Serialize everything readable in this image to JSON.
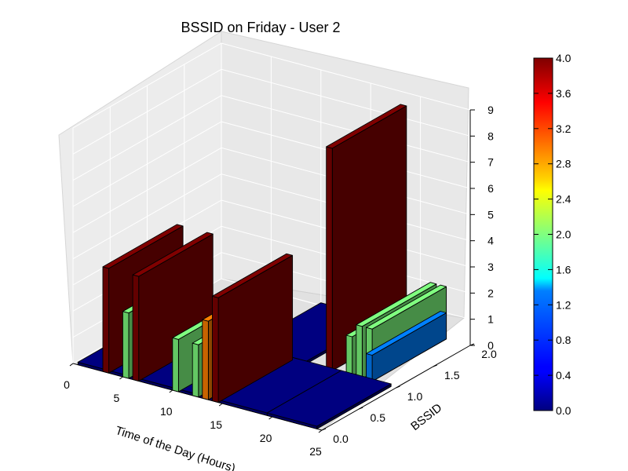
{
  "chart_data": {
    "type": "bar3d",
    "title": "BSSID on Friday - User 2",
    "xlabel": "Time of the Day (Hours)",
    "ylabel": "BSSID",
    "zlabel": "",
    "xlim": [
      0,
      25
    ],
    "ylim": [
      0,
      2
    ],
    "zlim": [
      0,
      9
    ],
    "x_ticks": [
      "0",
      "5",
      "10",
      "15",
      "20",
      "25"
    ],
    "y_ticks": [
      "0.0",
      "0.5",
      "1.0",
      "1.5",
      "2.0"
    ],
    "z_ticks": [
      "0",
      "1",
      "2",
      "3",
      "4",
      "5",
      "6",
      "7",
      "8",
      "9"
    ],
    "colorbar": {
      "min": 0.0,
      "max": 4.0,
      "colormap": "jet",
      "ticks": [
        "0.0",
        "0.4",
        "0.8",
        "1.2",
        "1.6",
        "2.0",
        "2.4",
        "2.8",
        "3.2",
        "3.6",
        "4.0"
      ]
    },
    "bars": [
      {
        "x": 0.5,
        "y": 0.0,
        "z": 0.1,
        "c": 0.0,
        "dx": 19,
        "dy": 1
      },
      {
        "x": 19.5,
        "y": 0.0,
        "z": 0.1,
        "c": 0.0,
        "dx": 5,
        "dy": 1
      },
      {
        "x": 10.0,
        "y": 1.0,
        "z": 0.1,
        "c": 0.0,
        "dx": 6,
        "dy": 1
      },
      {
        "x": 3.0,
        "y": 0.0,
        "z": 4.0,
        "c": 4.0,
        "dx": 0.6,
        "dy": 1
      },
      {
        "x": 5.0,
        "y": 0.0,
        "z": 2.5,
        "c": 2.0,
        "dx": 0.6,
        "dy": 1
      },
      {
        "x": 6.0,
        "y": 0.0,
        "z": 4.0,
        "c": 4.0,
        "dx": 0.6,
        "dy": 1
      },
      {
        "x": 10.0,
        "y": 0.0,
        "z": 2.0,
        "c": 2.0,
        "dx": 0.6,
        "dy": 1
      },
      {
        "x": 12.0,
        "y": 0.0,
        "z": 2.0,
        "c": 2.0,
        "dx": 0.6,
        "dy": 1
      },
      {
        "x": 13.0,
        "y": 0.0,
        "z": 3.0,
        "c": 3.0,
        "dx": 0.6,
        "dy": 1
      },
      {
        "x": 14.0,
        "y": 0.0,
        "z": 4.0,
        "c": 4.0,
        "dx": 0.6,
        "dy": 1
      },
      {
        "x": 18.0,
        "y": 1.0,
        "z": 8.5,
        "c": 4.0,
        "dx": 0.6,
        "dy": 1
      },
      {
        "x": 20.0,
        "y": 1.0,
        "z": 1.5,
        "c": 2.0,
        "dx": 0.6,
        "dy": 1
      },
      {
        "x": 21.0,
        "y": 1.0,
        "z": 2.0,
        "c": 2.0,
        "dx": 0.6,
        "dy": 1
      },
      {
        "x": 22.0,
        "y": 1.0,
        "z": 2.0,
        "c": 2.0,
        "dx": 0.6,
        "dy": 1
      },
      {
        "x": 22.0,
        "y": 1.0,
        "z": 1.0,
        "c": 1.0,
        "dx": 0.6,
        "dy": 1
      }
    ]
  }
}
